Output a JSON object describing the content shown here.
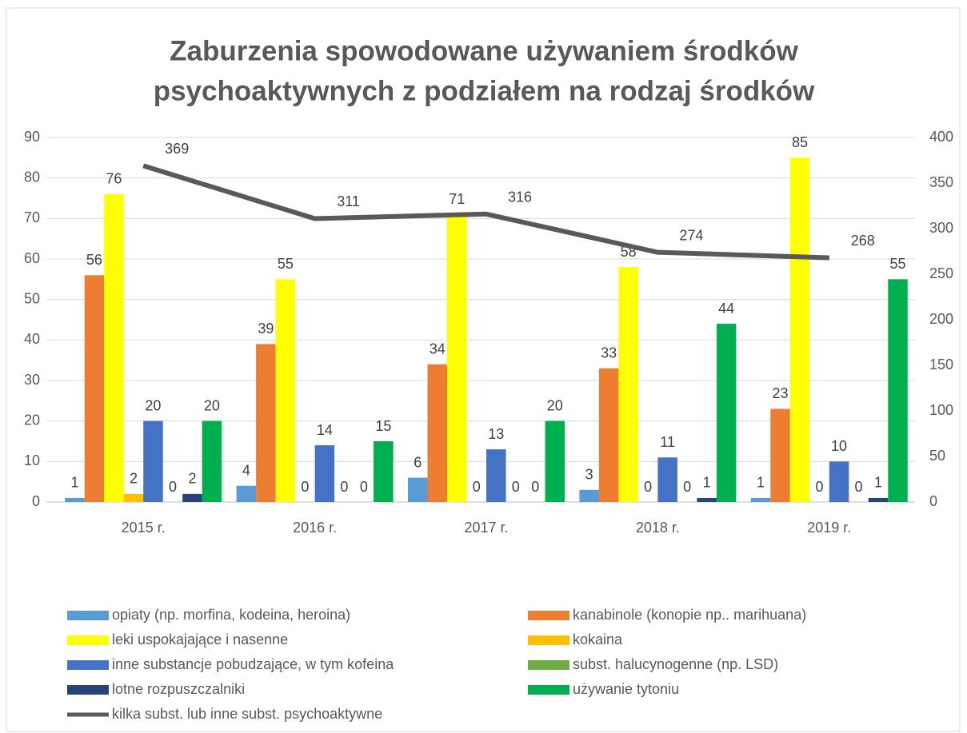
{
  "chart_data": {
    "type": "bar",
    "title": [
      "Zaburzenia spowodowane używaniem środków",
      "psychoaktywnych z podziałem na rodzaj środków"
    ],
    "categories": [
      "2015 r.",
      "2016 r.",
      "2017 r.",
      "2018 r.",
      "2019 r."
    ],
    "series": [
      {
        "name": "opiaty (np. morfina, kodeina, heroina)",
        "color": "#5b9bd5",
        "values": [
          1,
          4,
          6,
          3,
          1
        ]
      },
      {
        "name": "kanabinole (konopie np.. marihuana)",
        "color": "#ed7d31",
        "values": [
          56,
          39,
          34,
          33,
          23
        ]
      },
      {
        "name": "leki uspokajające i nasenne",
        "color": "#ffff00",
        "values": [
          76,
          55,
          71,
          58,
          85
        ]
      },
      {
        "name": "kokaina",
        "color": "#ffc000",
        "values": [
          2,
          0,
          0,
          0,
          0
        ]
      },
      {
        "name": "inne substancje pobudzające, w tym kofeina",
        "color": "#4472c4",
        "values": [
          20,
          14,
          13,
          11,
          10
        ]
      },
      {
        "name": "subst. halucynogenne (np. LSD)",
        "color": "#70ad47",
        "values": [
          0,
          0,
          0,
          0,
          0
        ]
      },
      {
        "name": "lotne rozpuszczalniki",
        "color": "#264478",
        "values": [
          2,
          0,
          0,
          1,
          1
        ]
      },
      {
        "name": "używanie tytoniu",
        "color": "#00b050",
        "values": [
          20,
          15,
          20,
          44,
          55
        ]
      },
      {
        "name": "kilka subst. lub inne subst. psychoaktywne",
        "color": "#595959",
        "type": "line",
        "axis": "y2",
        "values": [
          369,
          311,
          316,
          274,
          268
        ]
      }
    ],
    "ylim": [
      0,
      90
    ],
    "yticks": [
      0,
      10,
      20,
      30,
      40,
      50,
      60,
      70,
      80,
      90
    ],
    "y2lim": [
      0,
      400
    ],
    "y2ticks": [
      0,
      50,
      100,
      150,
      200,
      250,
      300,
      350,
      400
    ],
    "grid": true,
    "legend": "bottom"
  }
}
